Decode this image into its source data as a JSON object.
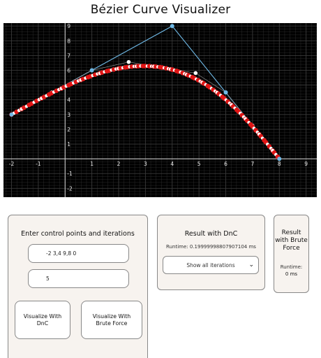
{
  "page": {
    "title": "Bézier Curve Visualizer"
  },
  "plot": {
    "x_ticks": [
      "-2",
      "-1",
      "1",
      "2",
      "3",
      "4",
      "5",
      "6",
      "7",
      "8",
      "9"
    ],
    "y_ticks": [
      "9",
      "8",
      "7",
      "6",
      "5",
      "4",
      "3",
      "2",
      "1",
      "-1",
      "-2"
    ],
    "xlim": [
      -2.3,
      9.4
    ],
    "ylim": [
      -2.6,
      9.2
    ],
    "control_points": [
      [
        -2,
        3
      ],
      [
        1,
        6
      ],
      [
        4,
        9
      ],
      [
        6,
        4.5
      ],
      [
        8,
        0
      ]
    ],
    "iterations": 5,
    "colors": {
      "background": "#000000",
      "grid": "#3a3a3a",
      "axis": "#d8d8d8",
      "control": "#6fb9e6",
      "curve_outer": "#e01515",
      "curve_inner": "#ffffff"
    }
  },
  "input_panel": {
    "title": "Enter control points and iterations",
    "points_value": "-2 3,4 9,8 0",
    "iterations_value": "5",
    "dnc_button": "Visualize With DnC",
    "bf_button": "Visualize With Brute Force"
  },
  "dnc_panel": {
    "title": "Result with DnC",
    "runtime": "Runtime: 0.19999998807907104 ms",
    "select_value": "Show all iterations"
  },
  "bf_panel": {
    "title": "Result with Brute Force",
    "runtime_label": "Runtime:",
    "runtime_value": "0 ms"
  }
}
